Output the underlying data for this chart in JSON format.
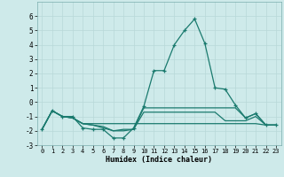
{
  "xlabel": "Humidex (Indice chaleur)",
  "x": [
    0,
    1,
    2,
    3,
    4,
    5,
    6,
    7,
    8,
    9,
    10,
    11,
    12,
    13,
    14,
    15,
    16,
    17,
    18,
    19,
    20,
    21,
    22,
    23
  ],
  "line1": [
    -1.9,
    -0.6,
    -1.0,
    -1.0,
    -1.8,
    -1.9,
    -1.9,
    -2.5,
    -2.5,
    -1.8,
    -0.3,
    2.2,
    2.2,
    4.0,
    5.0,
    5.8,
    4.1,
    1.0,
    0.9,
    -0.2,
    -1.1,
    -0.8,
    -1.6,
    -1.6
  ],
  "line2": [
    -1.9,
    -0.6,
    -1.0,
    -1.1,
    -1.5,
    -1.6,
    -1.7,
    -2.0,
    -1.9,
    -1.9,
    -0.4,
    -0.4,
    -0.4,
    -0.4,
    -0.4,
    -0.4,
    -0.4,
    -0.4,
    -0.4,
    -0.4,
    -1.1,
    -0.8,
    -1.6,
    -1.6
  ],
  "line3": [
    -1.9,
    -0.6,
    -1.0,
    -1.1,
    -1.5,
    -1.5,
    -1.5,
    -1.5,
    -1.5,
    -1.5,
    -1.5,
    -1.5,
    -1.5,
    -1.5,
    -1.5,
    -1.5,
    -1.5,
    -1.5,
    -1.5,
    -1.5,
    -1.5,
    -1.5,
    -1.6,
    -1.6
  ],
  "line4": [
    -1.9,
    -0.6,
    -1.0,
    -1.1,
    -1.5,
    -1.6,
    -1.8,
    -2.0,
    -2.0,
    -1.9,
    -0.7,
    -0.7,
    -0.7,
    -0.7,
    -0.7,
    -0.7,
    -0.7,
    -0.7,
    -1.3,
    -1.3,
    -1.3,
    -1.0,
    -1.6,
    -1.6
  ],
  "ylim": [
    -3,
    7
  ],
  "yticks": [
    -3,
    -2,
    -1,
    0,
    1,
    2,
    3,
    4,
    5,
    6
  ],
  "xticks": [
    0,
    1,
    2,
    3,
    4,
    5,
    6,
    7,
    8,
    9,
    10,
    11,
    12,
    13,
    14,
    15,
    16,
    17,
    18,
    19,
    20,
    21,
    22,
    23
  ],
  "line_color": "#1a7a6e",
  "bg_color": "#ceeaea",
  "grid_color": "#b8d8d8",
  "grid_minor_color": "#c8e4e4"
}
